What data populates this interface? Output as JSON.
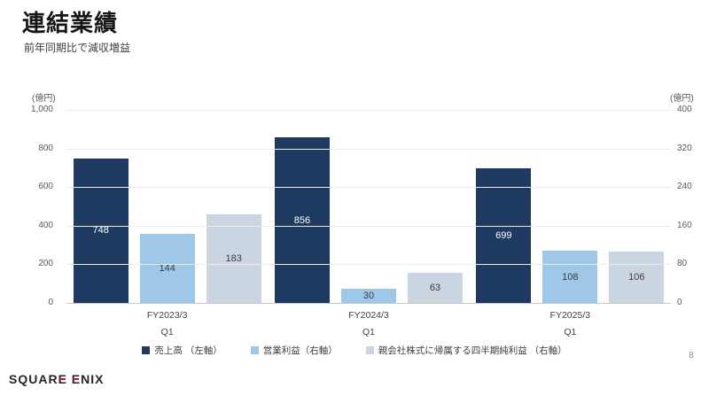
{
  "header": {
    "title": "連結業績",
    "subtitle": "前年同期比で減収増益"
  },
  "chart_data": {
    "type": "bar",
    "title": "連結業績",
    "categories": [
      {
        "line1": "FY2023/3",
        "line2": "Q1"
      },
      {
        "line1": "FY2024/3",
        "line2": "Q1"
      },
      {
        "line1": "FY2025/3",
        "line2": "Q1"
      }
    ],
    "series": [
      {
        "name": "売上高 （左軸）",
        "axis": "left",
        "color": "#1f3a60",
        "label_color": "#ffffff",
        "values": [
          748,
          856,
          699
        ]
      },
      {
        "name": "営業利益（右軸）",
        "axis": "right",
        "color": "#9fc7e8",
        "label_color": "#3c3c3c",
        "values": [
          144,
          30,
          108
        ]
      },
      {
        "name": "親会社株式に帰属する四半期純利益 （右軸）",
        "axis": "right",
        "color": "#cad5e1",
        "label_color": "#3c3c3c",
        "values": [
          183,
          63,
          106
        ]
      }
    ],
    "left_axis": {
      "unit": "(億円)",
      "max": 1000,
      "min": 0,
      "ticks": [
        1000,
        800,
        600,
        400,
        200,
        0
      ],
      "tick_labels": [
        "1,000",
        "800",
        "600",
        "400",
        "200",
        "0"
      ]
    },
    "right_axis": {
      "unit": "(億円)",
      "max": 400,
      "min": 0,
      "ticks": [
        400,
        320,
        240,
        160,
        80,
        0
      ],
      "tick_labels": [
        "400",
        "320",
        "240",
        "160",
        "80",
        "0"
      ]
    },
    "grid": true,
    "legend_position": "bottom"
  },
  "footer": {
    "logo_text": "SQUARE ENIX",
    "page_number": "8"
  }
}
